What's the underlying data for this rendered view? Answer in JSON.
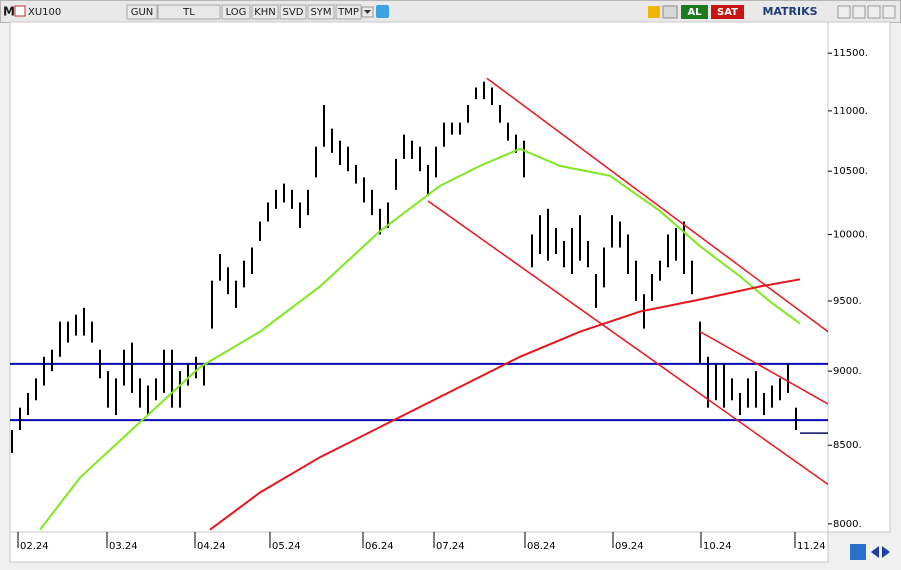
{
  "toolbar": {
    "logo": "M",
    "symbol": "XU100",
    "buttons": [
      "GUN",
      "TL",
      "LOG",
      "KHN",
      "SVD",
      "SYM",
      "TMP"
    ],
    "buy": "AL",
    "sell": "SAT",
    "brand": "MATRIKS"
  },
  "chart_data": {
    "type": "ohlc",
    "log": true,
    "grid": false,
    "xlim": [
      0,
      204.5
    ],
    "ylim": [
      7950,
      11780
    ],
    "xticks": [
      {
        "value": 2,
        "label": "02.24"
      },
      {
        "value": 24.25,
        "label": "03.24"
      },
      {
        "value": 46.25,
        "label": "04.24"
      },
      {
        "value": 65,
        "label": "05.24"
      },
      {
        "value": 88.25,
        "label": "06.24"
      },
      {
        "value": 106,
        "label": "07.24"
      },
      {
        "value": 128.75,
        "label": "08.24"
      },
      {
        "value": 150.75,
        "label": "09.24"
      },
      {
        "value": 172.75,
        "label": "10.24"
      },
      {
        "value": 196.25,
        "label": "11.24"
      }
    ],
    "yticks": [
      {
        "value": 8000,
        "label": "8000."
      },
      {
        "value": 8500,
        "label": "8500."
      },
      {
        "value": 9000,
        "label": "9000."
      },
      {
        "value": 9500,
        "label": "9500."
      },
      {
        "value": 10000,
        "label": "10000."
      },
      {
        "value": 10500,
        "label": "10500."
      },
      {
        "value": 11000,
        "label": "11000."
      },
      {
        "value": 11500,
        "label": "11500."
      }
    ],
    "color": "#000000",
    "x": [
      0.5,
      2.5,
      4.5,
      6.5,
      8.5,
      10.5,
      12.5,
      14.5,
      16.5,
      18.5,
      20.5,
      22.5,
      24.5,
      26.5,
      28.5,
      30.5,
      32.5,
      34.5,
      36.5,
      38.5,
      40.5,
      42.5,
      44.5,
      46.5,
      48.5,
      50.5,
      52.5,
      54.5,
      56.5,
      58.5,
      60.5,
      62.5,
      64.5,
      66.5,
      68.5,
      70.5,
      72.5,
      74.5,
      76.5,
      78.5,
      80.5,
      82.5,
      84.5,
      86.5,
      88.5,
      90.5,
      92.5,
      94.5,
      96.5,
      98.5,
      100.5,
      102.5,
      104.5,
      106.5,
      108.5,
      110.5,
      112.5,
      114.5,
      116.5,
      118.5,
      120.5,
      122.5,
      124.5,
      126.5,
      128.5,
      130.5,
      132.5,
      134.5,
      136.5,
      138.5,
      140.5,
      142.5,
      144.5,
      146.5,
      148.5,
      150.5,
      152.5,
      154.5,
      156.5,
      158.5,
      160.5,
      162.5,
      164.5,
      166.5,
      168.5,
      170.5,
      172.5,
      174.5,
      176.5,
      178.5,
      180.5,
      182.5,
      184.5,
      186.5,
      188.5,
      190.5,
      192.5,
      194.5,
      196.5
    ],
    "high": [
      8600,
      8750,
      8850,
      8950,
      9100,
      9150,
      9350,
      9350,
      9400,
      9450,
      9350,
      9150,
      9000,
      8950,
      9150,
      9200,
      8950,
      8900,
      8950,
      9150,
      9150,
      9000,
      9050,
      9100,
      9050,
      9650,
      9850,
      9750,
      9650,
      9800,
      9900,
      10100,
      10250,
      10350,
      10400,
      10350,
      10250,
      10350,
      10700,
      11050,
      10850,
      10750,
      10700,
      10550,
      10450,
      10350,
      10200,
      10250,
      10600,
      10800,
      10750,
      10700,
      10550,
      10700,
      10900,
      10900,
      10900,
      11050,
      11200,
      11250,
      11200,
      11050,
      10900,
      10800,
      10750,
      10000,
      10150,
      10200,
      10050,
      9950,
      10050,
      10150,
      9950,
      9700,
      9900,
      10150,
      10100,
      10000,
      9800,
      9550,
      9700,
      9800,
      10000,
      10050,
      10100,
      9800,
      9350,
      9100,
      9050,
      9050,
      8950,
      8850,
      8950,
      9000,
      8850,
      8900,
      8950,
      9050,
      8750
    ],
    "low": [
      8450,
      8600,
      8700,
      8800,
      8900,
      9000,
      9100,
      9200,
      9250,
      9250,
      9200,
      8950,
      8750,
      8700,
      8900,
      8850,
      8750,
      8700,
      8800,
      8850,
      8750,
      8750,
      8900,
      8950,
      8900,
      9300,
      9650,
      9550,
      9450,
      9600,
      9700,
      9950,
      10100,
      10200,
      10250,
      10200,
      10050,
      10150,
      10450,
      10700,
      10650,
      10550,
      10500,
      10400,
      10250,
      10150,
      10000,
      10050,
      10350,
      10600,
      10600,
      10500,
      10300,
      10450,
      10700,
      10800,
      10800,
      10900,
      11100,
      11100,
      11050,
      10900,
      10750,
      10650,
      10450,
      9750,
      9850,
      9800,
      9850,
      9750,
      9700,
      9800,
      9750,
      9450,
      9600,
      9900,
      9900,
      9700,
      9500,
      9300,
      9500,
      9650,
      9750,
      9800,
      9700,
      9550,
      9050,
      8750,
      8800,
      8750,
      8800,
      8700,
      8750,
      8750,
      8700,
      8750,
      8800,
      8850,
      8600
    ],
    "ma_lines": [
      {
        "color": "#7fe81e",
        "x": [
          7.5,
          17.5,
          32.5,
          47.5,
          62.5,
          77.5,
          92.5,
          107.5,
          117.5,
          127.5,
          137.5,
          150,
          162.5,
          172.5,
          182.5,
          190,
          197.5
        ],
        "values": [
          7964,
          8290,
          8653,
          9028,
          9278,
          9607,
          10026,
          10382,
          10543,
          10683,
          10543,
          10463,
          10182,
          9910,
          9682,
          9496,
          9336
        ]
      },
      {
        "color": "#e8141e",
        "x": [
          50,
          62.5,
          77.5,
          97.5,
          112.5,
          127.5,
          142.5,
          157.5,
          172.5,
          187.5,
          197.5
        ],
        "values": [
          7964,
          8196,
          8422,
          8687,
          8891,
          9100,
          9278,
          9423,
          9511,
          9607,
          9660
        ]
      }
    ],
    "trend_lines": [
      {
        "color": "#e8141e",
        "x": [
          119.25,
          204.5
        ],
        "values": [
          11279,
          9278
        ]
      },
      {
        "color": "#e8141e",
        "x": [
          104.5,
          204.5
        ],
        "values": [
          10261,
          8247
        ]
      },
      {
        "color": "#e8141e",
        "x": [
          172.5,
          204.5
        ],
        "values": [
          9278,
          8775
        ]
      }
    ],
    "levels": [
      {
        "color": "#0a0ab4",
        "value": 9050
      },
      {
        "color": "#0a0ab4",
        "value": 8666
      }
    ],
    "last": {
      "color": "#0a0a64",
      "value": 8580
    }
  }
}
